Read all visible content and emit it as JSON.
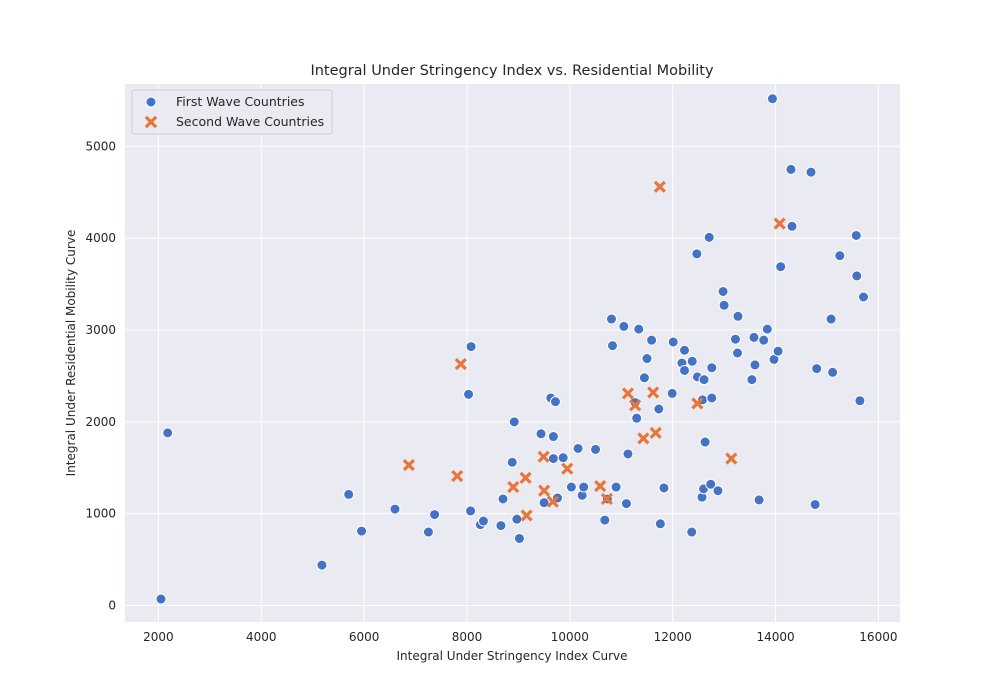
{
  "chart_data": {
    "type": "scatter",
    "title": "Integral Under Stringency Index vs. Residential Mobility",
    "xlabel": "Integral Under Stringency Index Curve",
    "ylabel": "Integral Under Residential Mobility Curve",
    "xlim": [
      1350,
      16420
    ],
    "ylim": [
      -180,
      5680
    ],
    "xticks": [
      2000,
      4000,
      6000,
      8000,
      10000,
      12000,
      14000,
      16000
    ],
    "yticks": [
      0,
      1000,
      2000,
      3000,
      4000,
      5000
    ],
    "grid": true,
    "legend": "top-left",
    "series": [
      {
        "name": "First Wave Countries",
        "marker": "circle",
        "color": "#4472c4",
        "points": [
          [
            2050,
            70
          ],
          [
            2180,
            1880
          ],
          [
            5180,
            440
          ],
          [
            5700,
            1210
          ],
          [
            5950,
            810
          ],
          [
            6600,
            1050
          ],
          [
            7250,
            800
          ],
          [
            7370,
            990
          ],
          [
            8030,
            2300
          ],
          [
            8080,
            2820
          ],
          [
            8070,
            1030
          ],
          [
            8260,
            880
          ],
          [
            8320,
            920
          ],
          [
            8660,
            870
          ],
          [
            8700,
            1160
          ],
          [
            8880,
            1560
          ],
          [
            8920,
            2000
          ],
          [
            8970,
            940
          ],
          [
            9020,
            730
          ],
          [
            9440,
            1870
          ],
          [
            9500,
            1120
          ],
          [
            9630,
            2260
          ],
          [
            9680,
            1600
          ],
          [
            9680,
            1840
          ],
          [
            9720,
            2220
          ],
          [
            9760,
            1170
          ],
          [
            9870,
            1610
          ],
          [
            10030,
            1290
          ],
          [
            10160,
            1710
          ],
          [
            10240,
            1200
          ],
          [
            10270,
            1290
          ],
          [
            10500,
            1700
          ],
          [
            10680,
            930
          ],
          [
            10730,
            1160
          ],
          [
            10810,
            3120
          ],
          [
            10830,
            2830
          ],
          [
            10900,
            1290
          ],
          [
            11050,
            3040
          ],
          [
            11100,
            1110
          ],
          [
            11130,
            1650
          ],
          [
            11270,
            2210
          ],
          [
            11300,
            2040
          ],
          [
            11340,
            3010
          ],
          [
            11450,
            2480
          ],
          [
            11500,
            2690
          ],
          [
            11590,
            2890
          ],
          [
            11730,
            2140
          ],
          [
            11760,
            890
          ],
          [
            11830,
            1280
          ],
          [
            11990,
            2310
          ],
          [
            12010,
            2870
          ],
          [
            12180,
            2640
          ],
          [
            12230,
            2780
          ],
          [
            12230,
            2560
          ],
          [
            12370,
            800
          ],
          [
            12380,
            2660
          ],
          [
            12470,
            3830
          ],
          [
            12480,
            2490
          ],
          [
            12570,
            1180
          ],
          [
            12580,
            2240
          ],
          [
            12600,
            1270
          ],
          [
            12610,
            2460
          ],
          [
            12630,
            1780
          ],
          [
            12710,
            4010
          ],
          [
            12740,
            1320
          ],
          [
            12760,
            2260
          ],
          [
            12760,
            2590
          ],
          [
            12880,
            1250
          ],
          [
            12980,
            3420
          ],
          [
            13000,
            3270
          ],
          [
            13220,
            2900
          ],
          [
            13260,
            2750
          ],
          [
            13270,
            3150
          ],
          [
            13540,
            2460
          ],
          [
            13580,
            2920
          ],
          [
            13600,
            2620
          ],
          [
            13680,
            1150
          ],
          [
            13770,
            2890
          ],
          [
            13840,
            3010
          ],
          [
            13940,
            5520
          ],
          [
            13970,
            2680
          ],
          [
            14050,
            2770
          ],
          [
            14100,
            3690
          ],
          [
            14300,
            4750
          ],
          [
            14320,
            4130
          ],
          [
            14690,
            4720
          ],
          [
            14770,
            1100
          ],
          [
            14800,
            2580
          ],
          [
            15080,
            3120
          ],
          [
            15110,
            2540
          ],
          [
            15250,
            3810
          ],
          [
            15570,
            4030
          ],
          [
            15580,
            3590
          ],
          [
            15640,
            2230
          ],
          [
            15710,
            3360
          ]
        ]
      },
      {
        "name": "Second Wave Countries",
        "marker": "x",
        "color": "#e8753a",
        "points": [
          [
            6870,
            1530
          ],
          [
            7810,
            1410
          ],
          [
            7880,
            2630
          ],
          [
            8900,
            1290
          ],
          [
            9140,
            1390
          ],
          [
            9160,
            980
          ],
          [
            9490,
            1620
          ],
          [
            9500,
            1250
          ],
          [
            9670,
            1130
          ],
          [
            9950,
            1490
          ],
          [
            10590,
            1300
          ],
          [
            10720,
            1160
          ],
          [
            11130,
            2310
          ],
          [
            11270,
            2180
          ],
          [
            11430,
            1820
          ],
          [
            11620,
            2320
          ],
          [
            11670,
            1880
          ],
          [
            11750,
            4560
          ],
          [
            12480,
            2200
          ],
          [
            13140,
            1600
          ],
          [
            14080,
            4160
          ]
        ]
      }
    ]
  }
}
